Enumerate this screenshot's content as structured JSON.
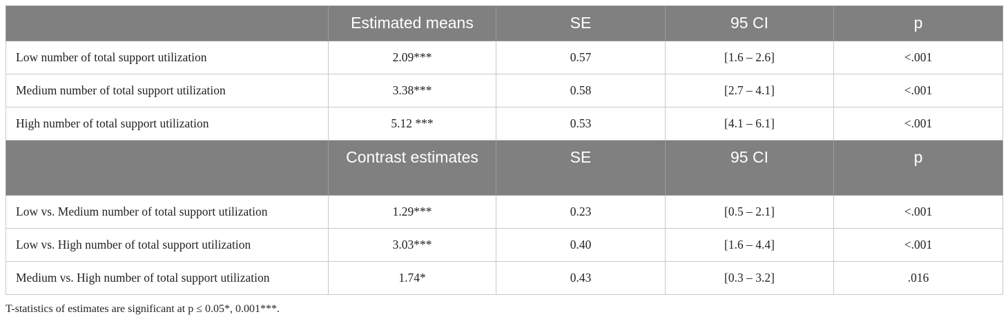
{
  "sections": [
    {
      "header": [
        "Estimated means",
        "SE",
        "95 CI",
        "p"
      ],
      "rows": [
        [
          "Low number of total support utilization",
          "2.09***",
          "0.57",
          "[1.6 – 2.6]",
          "<.001"
        ],
        [
          "Medium number of total support utilization",
          "3.38***",
          "0.58",
          "[2.7 – 4.1]",
          "<.001"
        ],
        [
          "High number of total support utilization",
          "5.12 ***",
          "0.53",
          "[4.1 – 6.1]",
          "<.001"
        ]
      ]
    },
    {
      "header": [
        "Contrast estimates",
        "SE",
        "95 CI",
        "p"
      ],
      "rows": [
        [
          "Low vs. Medium number of total support utilization",
          "1.29***",
          "0.23",
          "[0.5 – 2.1]",
          "<.001"
        ],
        [
          "Low vs. High number of total support utilization",
          "3.03***",
          "0.40",
          "[1.6 – 4.4]",
          "<.001"
        ],
        [
          "Medium vs. High number of total support utilization",
          "1.74*",
          "0.43",
          "[0.3 – 3.2]",
          ".016"
        ]
      ]
    }
  ],
  "footnote": "T-statistics of estimates are significant at p ≤ 0.05*, 0.001***."
}
